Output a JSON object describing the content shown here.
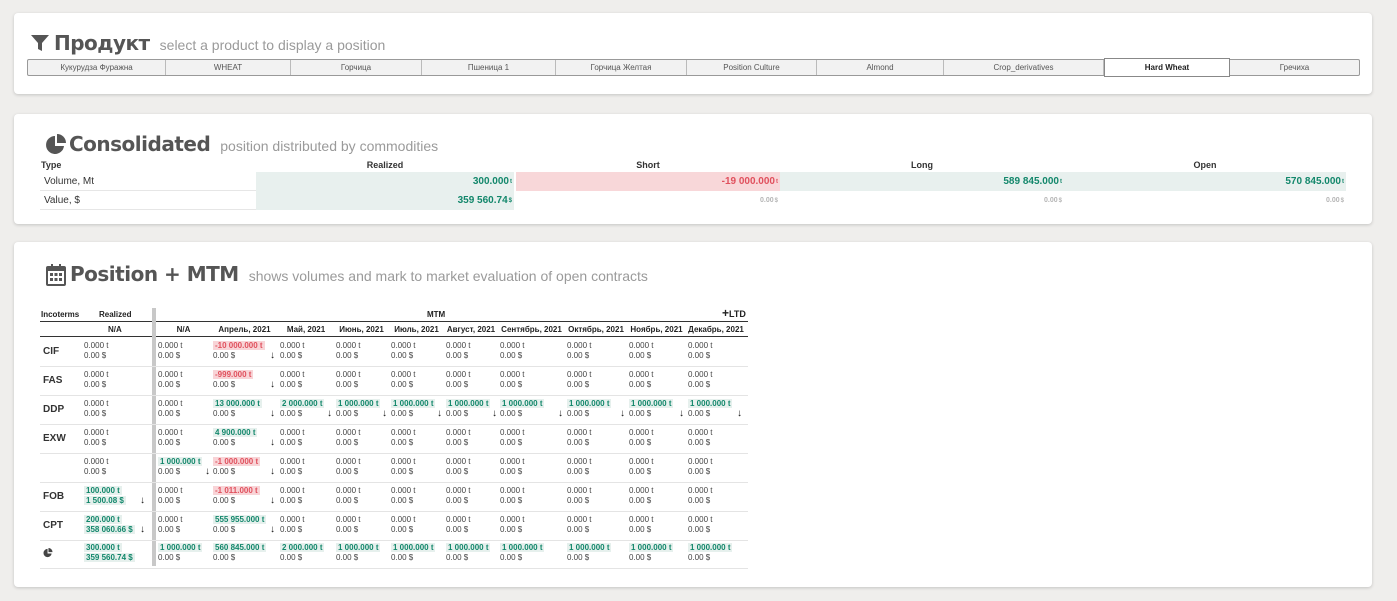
{
  "product": {
    "title": "Продукт",
    "subtitle": "select a product to display a position",
    "icon": "filter-icon",
    "tabs": [
      {
        "label": "Кукурудза Фуражна",
        "active": false
      },
      {
        "label": "WHEAT",
        "active": false
      },
      {
        "label": "Горчица",
        "active": false
      },
      {
        "label": "Пшеница 1",
        "active": false
      },
      {
        "label": "Горчица Желтая",
        "active": false
      },
      {
        "label": "Position Culture",
        "active": false
      },
      {
        "label": "Almond",
        "active": false
      },
      {
        "label": "Crop_derivatives",
        "active": false
      },
      {
        "label": "Hard Wheat",
        "active": true
      },
      {
        "label": "Гречиха",
        "active": false
      }
    ]
  },
  "consolidated": {
    "title": "Consolidated",
    "subtitle": "position distributed by commodities",
    "icon": "pie-chart-icon",
    "headers": {
      "type": "Type",
      "realized": "Realized",
      "short": "Short",
      "long": "Long",
      "open": "Open"
    },
    "rows": [
      {
        "label": "Volume, Mt",
        "realized": "300.000",
        "realized_unit": "t",
        "short": "-19 000.000",
        "short_unit": "t",
        "long": "589 845.000",
        "long_unit": "t",
        "open": "570 845.000",
        "open_unit": "t"
      },
      {
        "label": "Value, $",
        "realized": "359 560.74",
        "realized_unit": "$",
        "short": "0.00",
        "short_unit": "$",
        "long": "0.00",
        "long_unit": "$",
        "open": "0.00",
        "open_unit": "$"
      }
    ]
  },
  "position": {
    "title": "Position + MTM",
    "subtitle": "shows volumes and mark to market evaluation of open contracts",
    "icon": "calendar-icon",
    "headers": {
      "incoterms": "Incoterms",
      "realized": "Realized",
      "mtm": "MTM",
      "ltd": "LTD",
      "ltd_icon": "plus-icon",
      "realized_sub": "N/A",
      "columns": [
        "N/A",
        "Апрель, 2021",
        "Май, 2021",
        "Июнь, 2021",
        "Июль, 2021",
        "Август, 2021",
        "Сентябрь, 2021",
        "Октябрь, 2021",
        "Ноябрь, 2021",
        "Декабрь, 2021"
      ]
    },
    "rows": [
      {
        "label": "CIF",
        "realized": {
          "v1": "0.000 t",
          "v2": "0.00 $",
          "style": ""
        },
        "cells": [
          {
            "v1": "0.000 t",
            "v2": "0.00 $",
            "style": ""
          },
          {
            "v1": "-10 000.000 t",
            "v2": "0.00 $",
            "style": "r",
            "arrow": true
          },
          {
            "v1": "0.000 t",
            "v2": "0.00 $",
            "style": ""
          },
          {
            "v1": "0.000 t",
            "v2": "0.00 $",
            "style": ""
          },
          {
            "v1": "0.000 t",
            "v2": "0.00 $",
            "style": ""
          },
          {
            "v1": "0.000 t",
            "v2": "0.00 $",
            "style": ""
          },
          {
            "v1": "0.000 t",
            "v2": "0.00 $",
            "style": ""
          },
          {
            "v1": "0.000 t",
            "v2": "0.00 $",
            "style": ""
          },
          {
            "v1": "0.000 t",
            "v2": "0.00 $",
            "style": ""
          },
          {
            "v1": "0.000 t",
            "v2": "0.00 $",
            "style": ""
          }
        ]
      },
      {
        "label": "FAS",
        "realized": {
          "v1": "0.000 t",
          "v2": "0.00 $",
          "style": ""
        },
        "cells": [
          {
            "v1": "0.000 t",
            "v2": "0.00 $",
            "style": ""
          },
          {
            "v1": "-999.000 t",
            "v2": "0.00 $",
            "style": "r",
            "arrow": true
          },
          {
            "v1": "0.000 t",
            "v2": "0.00 $",
            "style": ""
          },
          {
            "v1": "0.000 t",
            "v2": "0.00 $",
            "style": ""
          },
          {
            "v1": "0.000 t",
            "v2": "0.00 $",
            "style": ""
          },
          {
            "v1": "0.000 t",
            "v2": "0.00 $",
            "style": ""
          },
          {
            "v1": "0.000 t",
            "v2": "0.00 $",
            "style": ""
          },
          {
            "v1": "0.000 t",
            "v2": "0.00 $",
            "style": ""
          },
          {
            "v1": "0.000 t",
            "v2": "0.00 $",
            "style": ""
          },
          {
            "v1": "0.000 t",
            "v2": "0.00 $",
            "style": ""
          }
        ]
      },
      {
        "label": "DDP",
        "realized": {
          "v1": "0.000 t",
          "v2": "0.00 $",
          "style": ""
        },
        "cells": [
          {
            "v1": "0.000 t",
            "v2": "0.00 $",
            "style": ""
          },
          {
            "v1": "13 000.000 t",
            "v2": "0.00 $",
            "style": "g",
            "arrow": true
          },
          {
            "v1": "2 000.000 t",
            "v2": "0.00 $",
            "style": "g",
            "arrow": true
          },
          {
            "v1": "1 000.000 t",
            "v2": "0.00 $",
            "style": "g",
            "arrow": true
          },
          {
            "v1": "1 000.000 t",
            "v2": "0.00 $",
            "style": "g",
            "arrow": true
          },
          {
            "v1": "1 000.000 t",
            "v2": "0.00 $",
            "style": "g",
            "arrow": true
          },
          {
            "v1": "1 000.000 t",
            "v2": "0.00 $",
            "style": "g",
            "arrow": true
          },
          {
            "v1": "1 000.000 t",
            "v2": "0.00 $",
            "style": "g",
            "arrow": true
          },
          {
            "v1": "1 000.000 t",
            "v2": "0.00 $",
            "style": "g",
            "arrow": true
          },
          {
            "v1": "1 000.000 t",
            "v2": "0.00 $",
            "style": "g",
            "arrow": true
          }
        ]
      },
      {
        "label": "EXW",
        "realized": {
          "v1": "0.000 t",
          "v2": "0.00 $",
          "style": ""
        },
        "cells": [
          {
            "v1": "0.000 t",
            "v2": "0.00 $",
            "style": ""
          },
          {
            "v1": "4 900.000 t",
            "v2": "0.00 $",
            "style": "g",
            "arrow": true
          },
          {
            "v1": "0.000 t",
            "v2": "0.00 $",
            "style": ""
          },
          {
            "v1": "0.000 t",
            "v2": "0.00 $",
            "style": ""
          },
          {
            "v1": "0.000 t",
            "v2": "0.00 $",
            "style": ""
          },
          {
            "v1": "0.000 t",
            "v2": "0.00 $",
            "style": ""
          },
          {
            "v1": "0.000 t",
            "v2": "0.00 $",
            "style": ""
          },
          {
            "v1": "0.000 t",
            "v2": "0.00 $",
            "style": ""
          },
          {
            "v1": "0.000 t",
            "v2": "0.00 $",
            "style": ""
          },
          {
            "v1": "0.000 t",
            "v2": "0.00 $",
            "style": ""
          }
        ]
      },
      {
        "label": "",
        "realized": {
          "v1": "0.000 t",
          "v2": "0.00 $",
          "style": ""
        },
        "cells": [
          {
            "v1": "1 000.000 t",
            "v2": "0.00 $",
            "style": "g",
            "arrow": true
          },
          {
            "v1": "-1 000.000 t",
            "v2": "0.00 $",
            "style": "r",
            "arrow": true
          },
          {
            "v1": "0.000 t",
            "v2": "0.00 $",
            "style": ""
          },
          {
            "v1": "0.000 t",
            "v2": "0.00 $",
            "style": ""
          },
          {
            "v1": "0.000 t",
            "v2": "0.00 $",
            "style": ""
          },
          {
            "v1": "0.000 t",
            "v2": "0.00 $",
            "style": ""
          },
          {
            "v1": "0.000 t",
            "v2": "0.00 $",
            "style": ""
          },
          {
            "v1": "0.000 t",
            "v2": "0.00 $",
            "style": ""
          },
          {
            "v1": "0.000 t",
            "v2": "0.00 $",
            "style": ""
          },
          {
            "v1": "0.000 t",
            "v2": "0.00 $",
            "style": ""
          }
        ]
      },
      {
        "label": "FOB",
        "realized": {
          "v1": "100.000 t",
          "v2": "1 500.08 $",
          "style": "g",
          "arrow": true
        },
        "cells": [
          {
            "v1": "0.000 t",
            "v2": "0.00 $",
            "style": ""
          },
          {
            "v1": "-1 011.000 t",
            "v2": "0.00 $",
            "style": "r",
            "arrow": true
          },
          {
            "v1": "0.000 t",
            "v2": "0.00 $",
            "style": ""
          },
          {
            "v1": "0.000 t",
            "v2": "0.00 $",
            "style": ""
          },
          {
            "v1": "0.000 t",
            "v2": "0.00 $",
            "style": ""
          },
          {
            "v1": "0.000 t",
            "v2": "0.00 $",
            "style": ""
          },
          {
            "v1": "0.000 t",
            "v2": "0.00 $",
            "style": ""
          },
          {
            "v1": "0.000 t",
            "v2": "0.00 $",
            "style": ""
          },
          {
            "v1": "0.000 t",
            "v2": "0.00 $",
            "style": ""
          },
          {
            "v1": "0.000 t",
            "v2": "0.00 $",
            "style": ""
          }
        ]
      },
      {
        "label": "CPT",
        "realized": {
          "v1": "200.000 t",
          "v2": "358 060.66 $",
          "style": "g",
          "arrow": true
        },
        "cells": [
          {
            "v1": "0.000 t",
            "v2": "0.00 $",
            "style": ""
          },
          {
            "v1": "555 955.000 t",
            "v2": "0.00 $",
            "style": "g",
            "arrow": true
          },
          {
            "v1": "0.000 t",
            "v2": "0.00 $",
            "style": ""
          },
          {
            "v1": "0.000 t",
            "v2": "0.00 $",
            "style": ""
          },
          {
            "v1": "0.000 t",
            "v2": "0.00 $",
            "style": ""
          },
          {
            "v1": "0.000 t",
            "v2": "0.00 $",
            "style": ""
          },
          {
            "v1": "0.000 t",
            "v2": "0.00 $",
            "style": ""
          },
          {
            "v1": "0.000 t",
            "v2": "0.00 $",
            "style": ""
          },
          {
            "v1": "0.000 t",
            "v2": "0.00 $",
            "style": ""
          },
          {
            "v1": "0.000 t",
            "v2": "0.00 $",
            "style": ""
          }
        ]
      },
      {
        "label": "",
        "label_icon": "pie-chart-icon",
        "realized": {
          "v1": "300.000 t",
          "v2": "359 560.74 $",
          "style": "g2"
        },
        "cells": [
          {
            "v1": "1 000.000 t",
            "v2": "0.00 $",
            "style": "g"
          },
          {
            "v1": "560 845.000 t",
            "v2": "0.00 $",
            "style": "g"
          },
          {
            "v1": "2 000.000 t",
            "v2": "0.00 $",
            "style": "g"
          },
          {
            "v1": "1 000.000 t",
            "v2": "0.00 $",
            "style": "g"
          },
          {
            "v1": "1 000.000 t",
            "v2": "0.00 $",
            "style": "g"
          },
          {
            "v1": "1 000.000 t",
            "v2": "0.00 $",
            "style": "g"
          },
          {
            "v1": "1 000.000 t",
            "v2": "0.00 $",
            "style": "g"
          },
          {
            "v1": "1 000.000 t",
            "v2": "0.00 $",
            "style": "g"
          },
          {
            "v1": "1 000.000 t",
            "v2": "0.00 $",
            "style": "g"
          },
          {
            "v1": "1 000.000 t",
            "v2": "0.00 $",
            "style": "g"
          }
        ]
      }
    ]
  }
}
